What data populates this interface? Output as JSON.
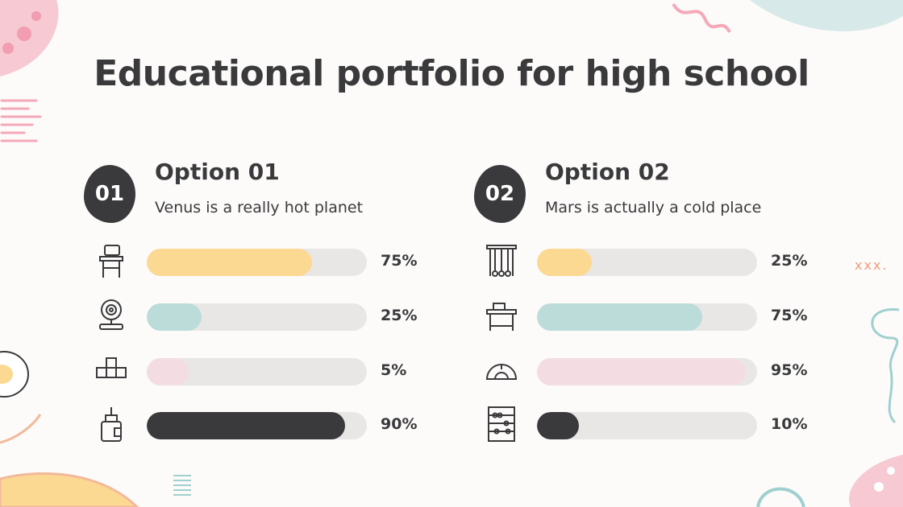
{
  "title": "Educational portfolio for high school",
  "options": [
    {
      "number": "01",
      "title": "Option 01",
      "description": "Venus is a really hot planet",
      "items": [
        {
          "icon": "school-desk-icon",
          "value": 75,
          "label": "75%",
          "color": "#fcd992"
        },
        {
          "icon": "webcam-icon",
          "value": 25,
          "label": "25%",
          "color": "#bcdcd9"
        },
        {
          "icon": "abc-blocks-icon",
          "value": 5,
          "label": "5%",
          "color": "#f3dde3"
        },
        {
          "icon": "glue-bottle-icon",
          "value": 90,
          "label": "90%",
          "color": "#3a3a3c"
        }
      ]
    },
    {
      "number": "02",
      "title": "Option 02",
      "description": "Mars is actually a cold place",
      "items": [
        {
          "icon": "newtons-cradle-icon",
          "value": 25,
          "label": "25%",
          "color": "#fcd992"
        },
        {
          "icon": "desk-icon",
          "value": 75,
          "label": "75%",
          "color": "#bcdcd9"
        },
        {
          "icon": "protractor-icon",
          "value": 95,
          "label": "95%",
          "color": "#f3dde3"
        },
        {
          "icon": "abacus-icon",
          "value": 10,
          "label": "10%",
          "color": "#3a3a3c"
        }
      ]
    }
  ],
  "decor_text": "xxx."
}
